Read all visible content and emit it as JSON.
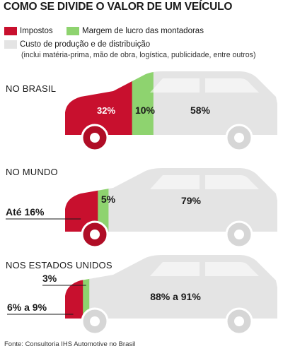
{
  "title": "COMO SE DIVIDE O VALOR DE UM VEÍCULO",
  "legend": {
    "items": [
      {
        "label": "Impostos",
        "color": "#c8102e"
      },
      {
        "label": "Margem de lucro das montadoras",
        "color": "#8ed36f"
      },
      {
        "label": "Custo de produção e de distribuição",
        "color": "#e4e4e4"
      }
    ],
    "subnote": "(inclui matéria-prima, mão de obra, logística, publicidade, entre outros)"
  },
  "chart_data": {
    "type": "bar",
    "orientation": "horizontal-stacked",
    "categories": [
      "NO BRASIL",
      "NO MUNDO",
      "NOS ESTADOS UNIDOS"
    ],
    "series": [
      {
        "name": "Impostos",
        "values": [
          32,
          16,
          9
        ],
        "labels": [
          "32%",
          "Até 16%",
          "6% a 9%"
        ]
      },
      {
        "name": "Margem de lucro das montadoras",
        "values": [
          10,
          5,
          3
        ],
        "labels": [
          "10%",
          "5%",
          "3%"
        ]
      },
      {
        "name": "Custo de produção e de distribuição",
        "values": [
          58,
          79,
          88
        ],
        "labels": [
          "58%",
          "79%",
          "88% a 91%"
        ]
      }
    ],
    "colors": [
      "#c8102e",
      "#8ed36f",
      "#e4e4e4"
    ],
    "xlim": [
      0,
      100
    ]
  },
  "source": "Fonte: Consultoria IHS Automotive no Brasil"
}
